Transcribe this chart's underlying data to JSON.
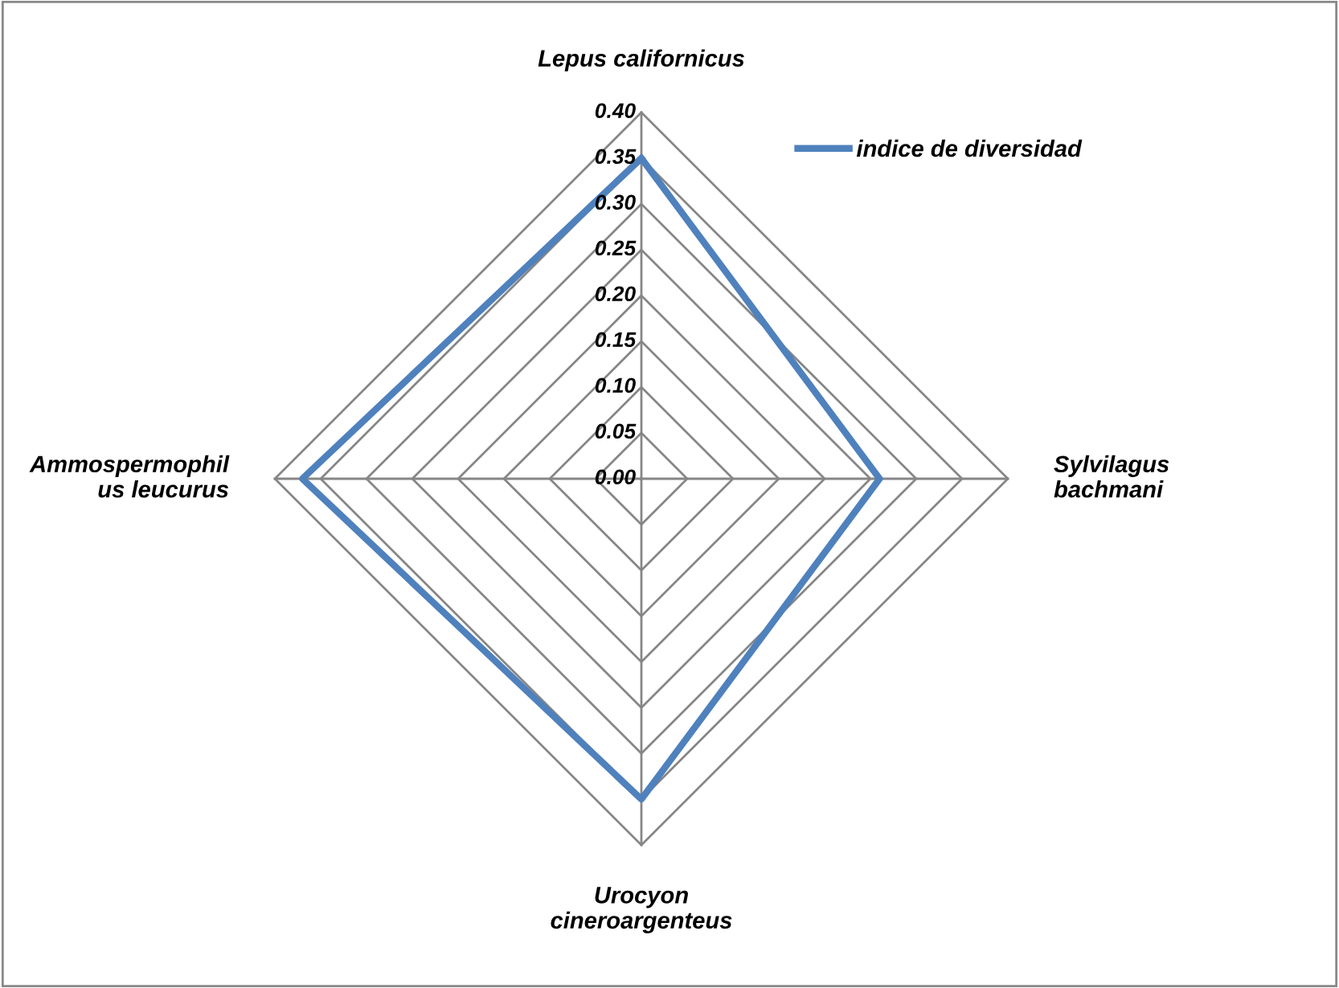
{
  "chart_data": {
    "type": "radar",
    "categories": [
      "Lepus californicus",
      "Sylvilagus\nbachmani",
      "Urocyon\ncineroargenteus",
      "Ammospermophil\nus leucurus"
    ],
    "series": [
      {
        "name": "indice de diversidad",
        "color": "#4f81bd",
        "values": [
          0.35,
          0.26,
          0.35,
          0.37
        ]
      }
    ],
    "ylim": [
      0,
      0.4
    ],
    "yticks": [
      {
        "value": 0,
        "label": "0.00"
      },
      {
        "value": 0.05,
        "label": "0.05"
      },
      {
        "value": 0.1,
        "label": "0.10"
      },
      {
        "value": 0.15,
        "label": "0.15"
      },
      {
        "value": 0.2,
        "label": "0.20"
      },
      {
        "value": 0.25,
        "label": "0.25"
      },
      {
        "value": 0.3,
        "label": "0.30"
      },
      {
        "value": 0.35,
        "label": "0.35"
      },
      {
        "value": 0.4,
        "label": "0.40"
      }
    ],
    "grid": true,
    "legend": "top right",
    "marker": "none",
    "line_style": "solid"
  }
}
